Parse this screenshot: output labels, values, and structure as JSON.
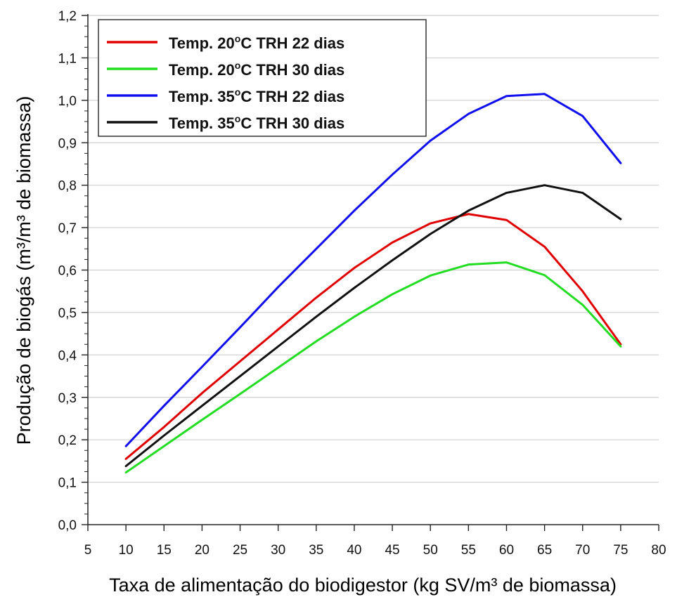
{
  "chart_data": {
    "type": "line",
    "xlabel": "Taxa de alimentação do biodigestor (kg SV/m³ de biomassa)",
    "ylabel": "Produção de biogás (m³/m³ de biomassa)",
    "xlim": [
      5,
      80
    ],
    "ylim": [
      0.0,
      1.2
    ],
    "x_ticks": [
      5,
      10,
      15,
      20,
      25,
      30,
      35,
      40,
      45,
      50,
      55,
      60,
      65,
      70,
      75,
      80
    ],
    "y_ticks": [
      0.0,
      0.1,
      0.2,
      0.3,
      0.4,
      0.5,
      0.6,
      0.7,
      0.8,
      0.9,
      1.0,
      1.1,
      1.2
    ],
    "x_tick_labels": [
      "5",
      "10",
      "15",
      "20",
      "25",
      "30",
      "35",
      "40",
      "45",
      "50",
      "55",
      "60",
      "65",
      "70",
      "75",
      "80"
    ],
    "y_tick_labels": [
      "0,0",
      "0,1",
      "0,2",
      "0,3",
      "0,4",
      "0,5",
      "0,6",
      "0,7",
      "0,8",
      "0,9",
      "1,0",
      "1,1",
      "1,2"
    ],
    "grid": "horizontal",
    "legend_position": "top-left",
    "x": [
      10,
      15,
      20,
      25,
      30,
      35,
      40,
      45,
      50,
      55,
      60,
      65,
      70,
      75
    ],
    "series": [
      {
        "name": "Temp. 20°C TRH 22 dias",
        "legend_parts": [
          "Temp. 20",
          "o",
          "C TRH 22 dias"
        ],
        "color": "#e00000",
        "values": [
          0.155,
          0.23,
          0.31,
          0.385,
          0.46,
          0.535,
          0.605,
          0.665,
          0.71,
          0.732,
          0.718,
          0.655,
          0.55,
          0.425
        ]
      },
      {
        "name": "Temp. 20°C TRH 30 dias",
        "legend_parts": [
          "Temp. 20",
          "o",
          "C TRH 30 dias"
        ],
        "color": "#22dd22",
        "values": [
          0.123,
          0.185,
          0.247,
          0.308,
          0.37,
          0.432,
          0.49,
          0.543,
          0.587,
          0.613,
          0.618,
          0.588,
          0.518,
          0.42
        ]
      },
      {
        "name": "Temp. 35°C TRH 22 dias",
        "legend_parts": [
          "Temp. 35",
          "o",
          "C TRH 22 dias"
        ],
        "color": "#1010ee",
        "values": [
          0.185,
          0.28,
          0.372,
          0.465,
          0.56,
          0.65,
          0.74,
          0.825,
          0.905,
          0.968,
          1.01,
          1.015,
          0.963,
          0.852
        ]
      },
      {
        "name": "Temp. 35°C TRH 30 dias",
        "legend_parts": [
          "Temp. 35",
          "o",
          "C TRH 30 dias"
        ],
        "color": "#111111",
        "values": [
          0.138,
          0.21,
          0.28,
          0.35,
          0.42,
          0.49,
          0.558,
          0.623,
          0.685,
          0.74,
          0.782,
          0.8,
          0.782,
          0.72
        ]
      }
    ]
  }
}
